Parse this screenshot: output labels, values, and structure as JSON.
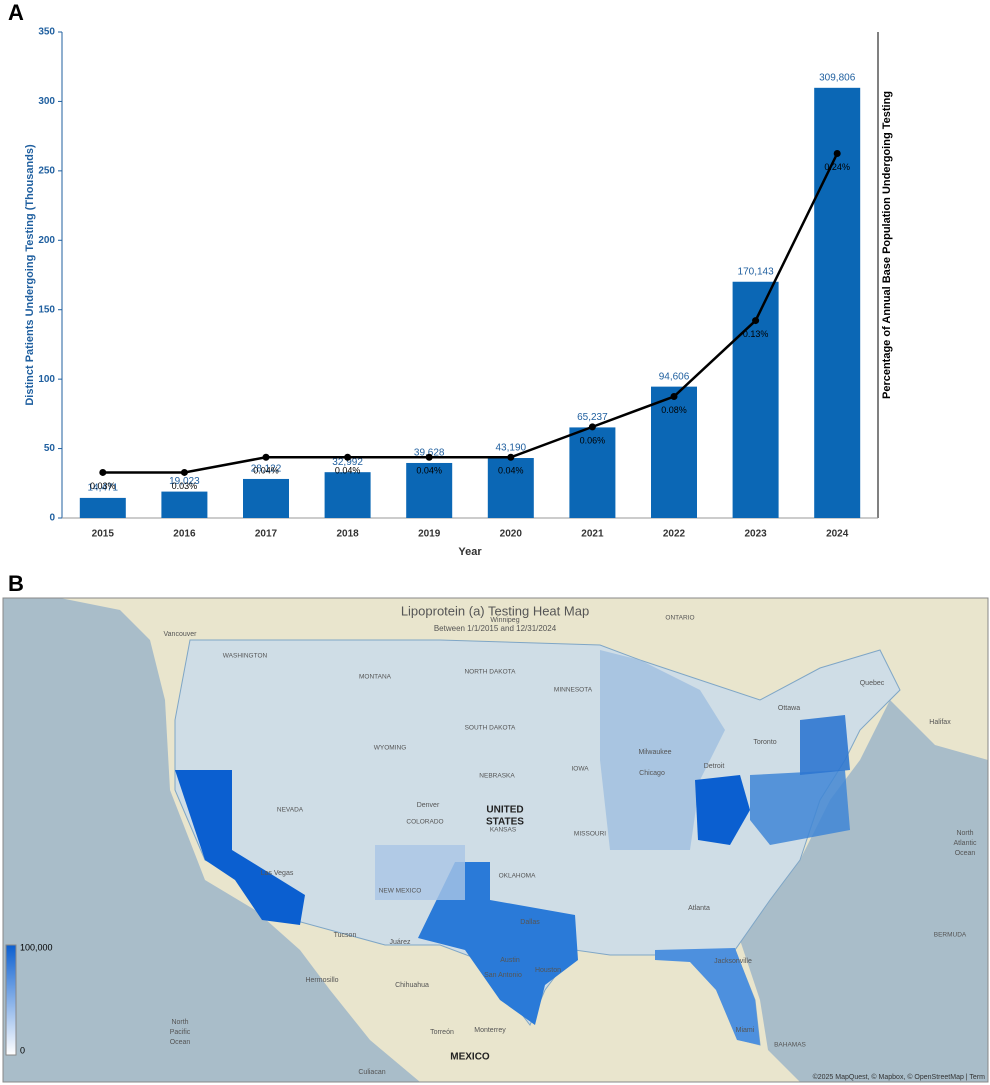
{
  "chart_data": {
    "type": "bar",
    "panel_label": "A",
    "categories": [
      "2015",
      "2016",
      "2017",
      "2018",
      "2019",
      "2020",
      "2021",
      "2022",
      "2023",
      "2024"
    ],
    "series": [
      {
        "type": "bar",
        "color": "#0b67b5",
        "values": [
          14.471,
          19.023,
          28.122,
          32.992,
          39.628,
          43.19,
          65.237,
          94.606,
          170.143,
          309.806
        ],
        "value_labels": [
          "14,471",
          "19,023",
          "28,122",
          "32,992",
          "39,628",
          "43,190",
          "65,237",
          "94,606",
          "170,143",
          "309,806"
        ]
      },
      {
        "type": "line",
        "axis": "y2",
        "color": "#000000",
        "values": [
          0.03,
          0.03,
          0.04,
          0.04,
          0.04,
          0.04,
          0.06,
          0.08,
          0.13,
          0.24
        ],
        "value_labels": [
          "0.03%",
          "0.03%",
          "0.04%",
          "0.04%",
          "0.04%",
          "0.04%",
          "0.06%",
          "0.08%",
          "0.13%",
          "0.24%"
        ]
      }
    ],
    "xlabel": "Year",
    "ylabel": "Distinct Patients Undergoing Testing (Thousands)",
    "y2label": "Percentage of Annual Base Population Undergoing Testing",
    "ylim": [
      0,
      350
    ],
    "yticks": [
      0,
      50,
      100,
      150,
      200,
      250,
      300,
      350
    ],
    "y2lim": [
      0,
      0.32
    ]
  },
  "map": {
    "panel_label": "B",
    "title": "Lipoprotein (a) Testing Heat Map",
    "subtitle": "Between 1/1/2015 and 12/31/2024",
    "legend_max": {
      "value": 100000,
      "label": "100,000"
    },
    "legend_min": 0,
    "places": [
      "Vancouver",
      "Winnipeg",
      "ONTARIO",
      "Quebec",
      "Ottawa",
      "Halifax",
      "Toronto",
      "WASHINGTON",
      "MONTANA",
      "NORTH DAKOTA",
      "SOUTH DAKOTA",
      "MINNESOTA",
      "WYOMING",
      "NEBRASKA",
      "IOWA",
      "Milwaukee",
      "Detroit",
      "Chicago",
      "Denver",
      "UNITED",
      "STATES",
      "NEVADA",
      "COLORADO",
      "KANSAS",
      "MISSOURI",
      "Las Vegas",
      "OKLAHOMA",
      "NEW MEXICO",
      "Tucson",
      "Dallas",
      "Atlanta",
      "Juárez",
      "Austin",
      "Houston",
      "San Antonio",
      "Jacksonville",
      "Miami",
      "Hermosillo",
      "Chihuahua",
      "Torreón",
      "Monterrey",
      "Culiacan",
      "MEXICO",
      "North",
      "Atlantic",
      "Ocean",
      "North",
      "Pacific",
      "Ocean",
      "BERMUDA",
      "BAHAMAS"
    ],
    "attribution": "©2025 MapQuest, © Mapbox, © OpenStreetMap | Term"
  }
}
